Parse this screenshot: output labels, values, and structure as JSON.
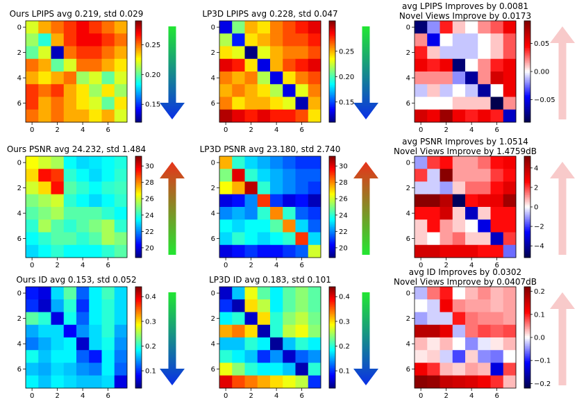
{
  "figure": {
    "description_free": true,
    "rows": 3,
    "cols": 3
  },
  "colors": {
    "arrow_green": "#22e632",
    "arrow_blue": "#0a2fe6",
    "arrow_red": "#e8321a",
    "arrow_pink": "#f8caca"
  },
  "chart_data": [
    {
      "type": "heatmap",
      "title": "Ours LPIPS avg 0.219, std 0.029",
      "title2": "",
      "colormap": "jet",
      "vmin": 0.12,
      "vmax": 0.29,
      "xticks": [
        "0",
        "2",
        "4",
        "6"
      ],
      "yticks": [
        "0",
        "2",
        "4",
        "6"
      ],
      "cbar_ticks": [
        0.15,
        0.2,
        0.25
      ],
      "cbar_labels": [
        "0.15",
        "0.20",
        "0.25"
      ],
      "arrow": "down",
      "values": [
        [
          0.22,
          0.24,
          0.25,
          0.26,
          0.27,
          0.26,
          0.25,
          0.24
        ],
        [
          0.21,
          0.19,
          0.24,
          0.26,
          0.27,
          0.27,
          0.26,
          0.25
        ],
        [
          0.2,
          0.22,
          0.13,
          0.25,
          0.26,
          0.26,
          0.25,
          0.24
        ],
        [
          0.25,
          0.24,
          0.2,
          0.22,
          0.25,
          0.25,
          0.24,
          0.23
        ],
        [
          0.24,
          0.23,
          0.24,
          0.25,
          0.21,
          0.22,
          0.2,
          0.22
        ],
        [
          0.26,
          0.25,
          0.26,
          0.24,
          0.23,
          0.21,
          0.23,
          0.21
        ],
        [
          0.26,
          0.24,
          0.25,
          0.24,
          0.23,
          0.22,
          0.2,
          0.23
        ],
        [
          0.25,
          0.24,
          0.25,
          0.24,
          0.24,
          0.23,
          0.24,
          0.22
        ]
      ]
    },
    {
      "type": "heatmap",
      "title": "LP3D LPIPS avg 0.228, std 0.047",
      "title2": "",
      "colormap": "jet",
      "vmin": 0.11,
      "vmax": 0.31,
      "xticks": [
        "0",
        "2",
        "4",
        "6"
      ],
      "yticks": [
        "0",
        "2",
        "4",
        "6"
      ],
      "cbar_ticks": [
        0.15,
        0.2,
        0.25
      ],
      "cbar_labels": [
        "0.15",
        "0.20",
        "0.25"
      ],
      "arrow": "down",
      "values": [
        [
          0.13,
          0.21,
          0.25,
          0.24,
          0.26,
          0.27,
          0.28,
          0.29
        ],
        [
          0.22,
          0.14,
          0.24,
          0.25,
          0.26,
          0.27,
          0.27,
          0.28
        ],
        [
          0.24,
          0.23,
          0.11,
          0.23,
          0.25,
          0.26,
          0.26,
          0.27
        ],
        [
          0.29,
          0.28,
          0.24,
          0.13,
          0.25,
          0.27,
          0.28,
          0.29
        ],
        [
          0.26,
          0.25,
          0.26,
          0.22,
          0.13,
          0.24,
          0.26,
          0.27
        ],
        [
          0.25,
          0.26,
          0.25,
          0.24,
          0.22,
          0.13,
          0.23,
          0.26
        ],
        [
          0.26,
          0.24,
          0.25,
          0.25,
          0.24,
          0.23,
          0.12,
          0.25
        ],
        [
          0.3,
          0.29,
          0.28,
          0.29,
          0.28,
          0.28,
          0.27,
          0.24
        ]
      ]
    },
    {
      "type": "heatmap",
      "title": "avg LPIPS Improves by 0.0081",
      "title2": "Novel Views Improve by 0.0173",
      "colormap": "seismic",
      "vmin": -0.09,
      "vmax": 0.09,
      "xticks": [
        "0",
        "2",
        "4",
        "6"
      ],
      "yticks": [
        "0",
        "2",
        "4",
        "6"
      ],
      "cbar_ticks": [
        0.05,
        0.0,
        -0.05
      ],
      "cbar_labels": [
        "0.05",
        "0.00",
        "−0.05"
      ],
      "arrow": "up",
      "values": [
        [
          -0.08,
          -0.02,
          0.04,
          0.01,
          0.0,
          0.02,
          0.03,
          0.05
        ],
        [
          0.02,
          -0.05,
          0.0,
          -0.01,
          -0.01,
          0.0,
          0.01,
          0.03
        ],
        [
          0.04,
          0.01,
          -0.01,
          -0.01,
          -0.01,
          0.0,
          0.01,
          0.03
        ],
        [
          0.05,
          0.04,
          0.05,
          -0.08,
          0.0,
          0.02,
          0.04,
          0.05
        ],
        [
          0.02,
          0.02,
          0.02,
          -0.02,
          -0.07,
          0.02,
          0.06,
          0.05
        ],
        [
          -0.01,
          0.01,
          -0.01,
          0.0,
          -0.01,
          -0.07,
          0.0,
          0.05
        ],
        [
          0.0,
          0.0,
          0.0,
          0.01,
          0.01,
          0.01,
          -0.09,
          0.02
        ],
        [
          0.06,
          0.05,
          0.08,
          0.05,
          0.04,
          0.05,
          0.04,
          -0.06
        ]
      ]
    },
    {
      "type": "heatmap",
      "title": "Ours PSNR avg 24.232, std 1.484",
      "title2": "",
      "colormap": "jet",
      "vmin": 18.8,
      "vmax": 31.2,
      "xticks": [
        "0",
        "2",
        "4",
        "6"
      ],
      "yticks": [
        "0",
        "2",
        "4",
        "6"
      ],
      "cbar_ticks": [
        20,
        22,
        24,
        26,
        28,
        30
      ],
      "cbar_labels": [
        "20",
        "22",
        "24",
        "26",
        "28",
        "30"
      ],
      "arrow": "up",
      "values": [
        [
          26.5,
          26.0,
          25.5,
          23.5,
          23.0,
          23.2,
          23.5,
          23.8
        ],
        [
          27.0,
          29.5,
          29.0,
          24.0,
          23.5,
          23.0,
          23.5,
          24.0
        ],
        [
          26.0,
          27.0,
          29.5,
          24.5,
          24.0,
          23.5,
          24.0,
          24.2
        ],
        [
          25.0,
          25.5,
          26.0,
          24.0,
          23.5,
          23.0,
          23.5,
          24.0
        ],
        [
          24.5,
          25.0,
          25.5,
          24.5,
          24.5,
          24.5,
          24.0,
          23.5
        ],
        [
          24.0,
          25.5,
          24.5,
          24.0,
          24.5,
          25.0,
          25.5,
          24.0
        ],
        [
          23.5,
          24.0,
          24.5,
          24.5,
          24.0,
          24.5,
          25.5,
          25.0
        ],
        [
          23.0,
          23.5,
          24.0,
          23.5,
          23.5,
          23.5,
          24.0,
          24.5
        ]
      ]
    },
    {
      "type": "heatmap",
      "title": "LP3D PSNR avg 23.180, std 2.740",
      "title2": "",
      "colormap": "jet",
      "vmin": 18.8,
      "vmax": 31.2,
      "xticks": [
        "0",
        "2",
        "4",
        "6"
      ],
      "yticks": [
        "0",
        "2",
        "4",
        "6"
      ],
      "cbar_ticks": [
        20,
        22,
        24,
        26,
        28,
        30
      ],
      "cbar_labels": [
        "20",
        "22",
        "24",
        "26",
        "28",
        "30"
      ],
      "arrow": "up",
      "values": [
        [
          27.5,
          24.0,
          23.0,
          22.5,
          22.0,
          21.5,
          21.0,
          21.0
        ],
        [
          25.0,
          30.0,
          24.0,
          23.0,
          22.5,
          22.0,
          21.5,
          21.5
        ],
        [
          26.5,
          27.5,
          30.5,
          24.0,
          22.5,
          22.0,
          21.5,
          21.0
        ],
        [
          20.0,
          20.5,
          22.0,
          29.0,
          21.0,
          20.0,
          20.5,
          19.5
        ],
        [
          22.0,
          22.5,
          22.0,
          24.0,
          28.0,
          24.0,
          21.5,
          21.0
        ],
        [
          23.5,
          23.0,
          23.5,
          23.5,
          24.5,
          28.0,
          23.0,
          21.5
        ],
        [
          23.0,
          24.0,
          23.5,
          23.0,
          23.5,
          24.0,
          29.0,
          23.0
        ],
        [
          20.0,
          20.5,
          21.0,
          20.5,
          20.5,
          21.0,
          21.5,
          26.0
        ]
      ]
    },
    {
      "type": "heatmap",
      "title": "avg PSNR Improves by 1.0514",
      "title2": "Novel Views Improve by 1.4759dB",
      "colormap": "seismic",
      "vmin": -5.2,
      "vmax": 5.2,
      "xticks": [
        "0",
        "2",
        "4",
        "6"
      ],
      "yticks": [
        "0",
        "2",
        "4",
        "6"
      ],
      "cbar_ticks": [
        4,
        2,
        0,
        -2,
        -4
      ],
      "cbar_labels": [
        "4",
        "2",
        "0",
        "−2",
        "−4"
      ],
      "arrow": "up",
      "values": [
        [
          -1.0,
          2.0,
          2.5,
          1.0,
          1.0,
          1.5,
          2.5,
          2.8
        ],
        [
          2.0,
          -0.5,
          5.0,
          1.0,
          1.0,
          1.0,
          2.0,
          2.5
        ],
        [
          -0.5,
          -0.5,
          -1.0,
          0.5,
          1.5,
          1.5,
          2.5,
          3.2
        ],
        [
          5.0,
          5.0,
          4.0,
          -5.0,
          2.5,
          3.0,
          3.0,
          4.5
        ],
        [
          2.5,
          2.5,
          3.5,
          0.5,
          -3.5,
          0.5,
          2.5,
          2.5
        ],
        [
          0.5,
          2.5,
          1.0,
          0.5,
          0.0,
          -3.0,
          2.5,
          2.5
        ],
        [
          0.5,
          0.0,
          1.0,
          1.5,
          0.5,
          0.5,
          -3.5,
          2.0
        ],
        [
          3.5,
          3.5,
          3.0,
          3.0,
          3.0,
          2.5,
          2.5,
          -1.5
        ]
      ]
    },
    {
      "type": "heatmap",
      "title": "Ours ID avg 0.153, std 0.052",
      "title2": "",
      "colormap": "jet",
      "vmin": 0.03,
      "vmax": 0.44,
      "xticks": [
        "0",
        "2",
        "4",
        "6"
      ],
      "yticks": [
        "0",
        "2",
        "4",
        "6"
      ],
      "cbar_ticks": [
        0.1,
        0.2,
        0.3,
        0.4
      ],
      "cbar_labels": [
        "0.1",
        "0.2",
        "0.3",
        "0.4"
      ],
      "arrow": "down",
      "values": [
        [
          0.09,
          0.07,
          0.17,
          0.22,
          0.12,
          0.18,
          0.21,
          0.17
        ],
        [
          0.1,
          0.06,
          0.15,
          0.2,
          0.1,
          0.18,
          0.2,
          0.17
        ],
        [
          0.22,
          0.2,
          0.07,
          0.19,
          0.12,
          0.18,
          0.2,
          0.17
        ],
        [
          0.15,
          0.17,
          0.17,
          0.08,
          0.14,
          0.17,
          0.2,
          0.15
        ],
        [
          0.13,
          0.15,
          0.17,
          0.18,
          0.06,
          0.17,
          0.19,
          0.14
        ],
        [
          0.19,
          0.16,
          0.18,
          0.18,
          0.12,
          0.09,
          0.18,
          0.13
        ],
        [
          0.16,
          0.15,
          0.17,
          0.16,
          0.14,
          0.13,
          0.18,
          0.12
        ],
        [
          0.18,
          0.16,
          0.18,
          0.17,
          0.16,
          0.16,
          0.17,
          0.07
        ]
      ]
    },
    {
      "type": "heatmap",
      "title": "LP3D ID avg 0.183, std 0.101",
      "title2": "",
      "colormap": "jet",
      "vmin": 0.03,
      "vmax": 0.44,
      "xticks": [
        "0",
        "2",
        "4",
        "6"
      ],
      "yticks": [
        "0",
        "2",
        "4",
        "6"
      ],
      "cbar_ticks": [
        0.1,
        0.2,
        0.3,
        0.4
      ],
      "cbar_labels": [
        "0.1",
        "0.2",
        "0.3",
        "0.4"
      ],
      "arrow": "down",
      "values": [
        [
          0.06,
          0.16,
          0.28,
          0.22,
          0.18,
          0.22,
          0.24,
          0.22
        ],
        [
          0.1,
          0.05,
          0.3,
          0.26,
          0.18,
          0.22,
          0.24,
          0.22
        ],
        [
          0.18,
          0.2,
          0.06,
          0.3,
          0.2,
          0.24,
          0.26,
          0.23
        ],
        [
          0.32,
          0.34,
          0.3,
          0.05,
          0.2,
          0.26,
          0.28,
          0.24
        ],
        [
          0.16,
          0.16,
          0.2,
          0.18,
          0.04,
          0.16,
          0.2,
          0.18
        ],
        [
          0.2,
          0.18,
          0.16,
          0.1,
          0.14,
          0.06,
          0.12,
          0.14
        ],
        [
          0.28,
          0.24,
          0.2,
          0.18,
          0.18,
          0.16,
          0.05,
          0.2
        ],
        [
          0.4,
          0.36,
          0.34,
          0.32,
          0.3,
          0.28,
          0.26,
          0.1
        ]
      ]
    },
    {
      "type": "heatmap",
      "title": "avg ID Improves by 0.0302",
      "title2": "Novel Views Improve by 0.0407dB",
      "colormap": "seismic",
      "vmin": -0.22,
      "vmax": 0.22,
      "xticks": [
        "0",
        "2",
        "4",
        "6"
      ],
      "yticks": [
        "0",
        "2",
        "4",
        "6"
      ],
      "cbar_ticks": [
        0.2,
        0.1,
        0.0,
        -0.1,
        -0.2
      ],
      "cbar_labels": [
        "0.2",
        "0.1",
        "0.0",
        "−0.1",
        "−0.2"
      ],
      "arrow": "up",
      "values": [
        [
          -0.03,
          0.06,
          0.1,
          0.0,
          0.03,
          0.05,
          0.03,
          0.04
        ],
        [
          0.0,
          -0.02,
          0.12,
          0.05,
          0.04,
          0.04,
          0.03,
          0.04
        ],
        [
          -0.04,
          -0.02,
          -0.02,
          0.1,
          0.06,
          0.05,
          0.05,
          0.04
        ],
        [
          0.17,
          0.17,
          0.13,
          -0.03,
          0.06,
          0.08,
          0.07,
          0.08
        ],
        [
          0.03,
          0.01,
          0.03,
          0.0,
          -0.05,
          -0.01,
          0.01,
          0.03
        ],
        [
          0.01,
          0.02,
          -0.02,
          -0.08,
          0.02,
          -0.05,
          -0.06,
          0.0
        ],
        [
          0.12,
          0.09,
          0.03,
          0.02,
          0.04,
          0.03,
          -0.13,
          0.08
        ],
        [
          0.21,
          0.2,
          0.16,
          0.15,
          0.14,
          0.12,
          0.09,
          0.03
        ]
      ]
    }
  ]
}
